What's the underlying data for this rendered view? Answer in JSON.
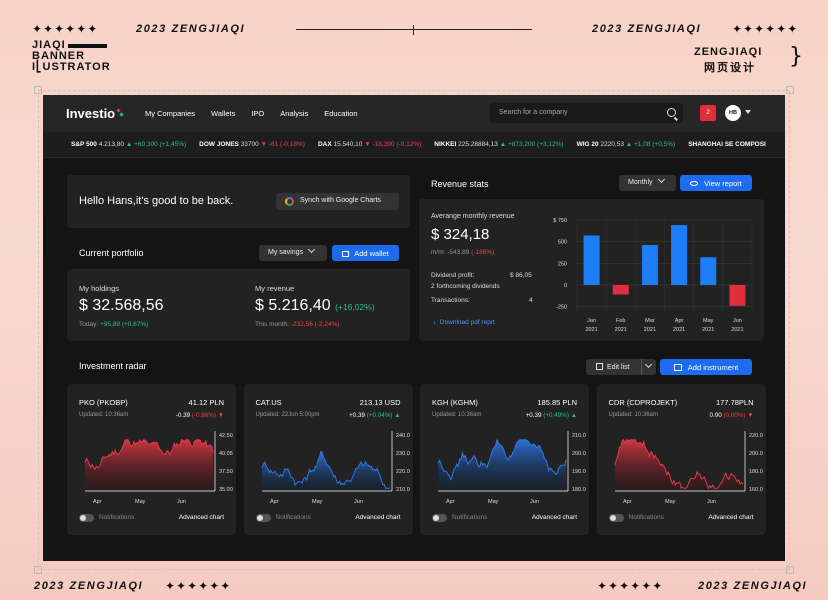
{
  "frame": {
    "stars": "✦✦✦✦✦✦",
    "year_text": "2023 ZENGJIAQI",
    "brand_lines": [
      "JIAQI",
      "BANNER",
      "I⎣USTRATOR"
    ],
    "brand_right": "ZENGJIAQI",
    "brand_right_cn": "网页设计",
    "bracket": "}"
  },
  "app": {
    "logo": "Investio",
    "nav": [
      "My Companies",
      "Wallets",
      "IPO",
      "Analysis",
      "Education"
    ],
    "search_placeholder": "Search for a company",
    "notif_count": "2",
    "avatar": "HB",
    "ticker": [
      {
        "name": "S&P 500",
        "value": "4.213,80",
        "change": "+60,300 (+1,45%)",
        "dir": "up"
      },
      {
        "name": "DOW JONES",
        "value": "33700",
        "change": "-61 (-0,18%)",
        "dir": "dn"
      },
      {
        "name": "DAX",
        "value": "15.540,10",
        "change": "-18,390 (-0,12%)",
        "dir": "dn"
      },
      {
        "name": "NIKKEI",
        "value": "225.28884,13",
        "change": "+873,200 (+3,12%)",
        "dir": "up"
      },
      {
        "name": "WIG 20",
        "value": "2220,53",
        "change": "+1,08 (+0,5%)",
        "dir": "up"
      },
      {
        "name": "SHANGHAI SE COMPOSI",
        "value": "",
        "change": "",
        "dir": "up"
      }
    ],
    "greeting": "Hello Hans,it's good to be back.",
    "sync_label": "Synch with Google Charts",
    "portfolio": {
      "title": "Current portfolio",
      "select": "My savings",
      "add_label": "Add wallet",
      "holdings_label": "My holdings",
      "holdings_value": "$ 32.568,56",
      "holdings_today_label": "Today:",
      "holdings_today_change": "+95,89 (+0,67%)",
      "revenue_label": "My revenue",
      "revenue_value": "$ 5.216,40",
      "revenue_change": "(+16,02%)",
      "revenue_month_label": "This month:",
      "revenue_month_change": "-232,56 (-2,24%)"
    },
    "revenue_stats": {
      "title": "Revenue stats",
      "period": "Monthly",
      "view_label": "View report",
      "avg_label": "Averange monthly revenue",
      "avg_value": "$ 324,18",
      "mom_label": "m/m:",
      "mom_value": "-543,89",
      "mom_change": "(-186%)",
      "dividend_label": "Dividend profit:",
      "dividend_value": "$ 86,05",
      "forthcoming": "2 forthcoming dividends",
      "transactions_label": "Transactions:",
      "transactions_value": "4",
      "download_label": "Download pdf reprt"
    },
    "radar": {
      "title": "Investment radar",
      "edit_label": "Edit list",
      "add_label": "Add instrument"
    },
    "instruments": [
      {
        "name": "PKO (PKOBP)",
        "price": "41.12 PLN",
        "updated": "Updated: 10:36am",
        "change": "-0.39",
        "pct": "(-0.96%)",
        "dir": "dn",
        "months": [
          "Apr",
          "May",
          "Jun"
        ],
        "yticks": [
          "42.50",
          "40.05",
          "37.50",
          "35.00"
        ],
        "notif": "Notifications",
        "adv": "Advanced chart"
      },
      {
        "name": "CAT.US",
        "price": "213.13 USD",
        "updated": "Updated: 22Jun 5:00pm",
        "change": "+0.39",
        "pct": "(+0.04%)",
        "dir": "up",
        "months": [
          "Apr",
          "May",
          "Jun"
        ],
        "yticks": [
          "240.00",
          "230.00",
          "220.00",
          "210.00"
        ],
        "notif": "Notifications",
        "adv": "Advanced chart"
      },
      {
        "name": "KGH (KGHM)",
        "price": "185.85 PLN",
        "updated": "Updated: 10:36am",
        "change": "+0.39",
        "pct": "(+0.49%)",
        "dir": "up",
        "months": [
          "Apr",
          "May",
          "Jun"
        ],
        "yticks": [
          "210.00",
          "200.00",
          "190.00",
          "180.00"
        ],
        "notif": "Notifications",
        "adv": "Advanced chart"
      },
      {
        "name": "CDR (CDPROJEKT)",
        "price": "177.78PLN",
        "updated": "Updated: 10:36am",
        "change": "0.00",
        "pct": "(0.00%)",
        "dir": "dn",
        "months": [
          "Apr",
          "May",
          "Jun"
        ],
        "yticks": [
          "220.00",
          "200.00",
          "180.00",
          "160.00"
        ],
        "notif": "Notifications",
        "adv": "Advanced chart"
      }
    ]
  },
  "chart_data": {
    "type": "bar",
    "categories": [
      "Jan 2021",
      "Feb 2021",
      "Mar 2021",
      "Apr 2021",
      "May 2021",
      "Jun 2021"
    ],
    "cat_line1": [
      "Jan",
      "Feb",
      "Mar",
      "Apr",
      "May",
      "Jun"
    ],
    "cat_line2": [
      "2021",
      "2021",
      "2021",
      "2021",
      "2021",
      "2021"
    ],
    "values": [
      570,
      -110,
      460,
      690,
      320,
      -240
    ],
    "yticks": [
      "$ 750",
      "500",
      "250",
      "0",
      "-250"
    ],
    "ylim": [
      -300,
      760
    ],
    "colors": {
      "pos": "#1e7ef7",
      "neg": "#e02e3c"
    }
  }
}
